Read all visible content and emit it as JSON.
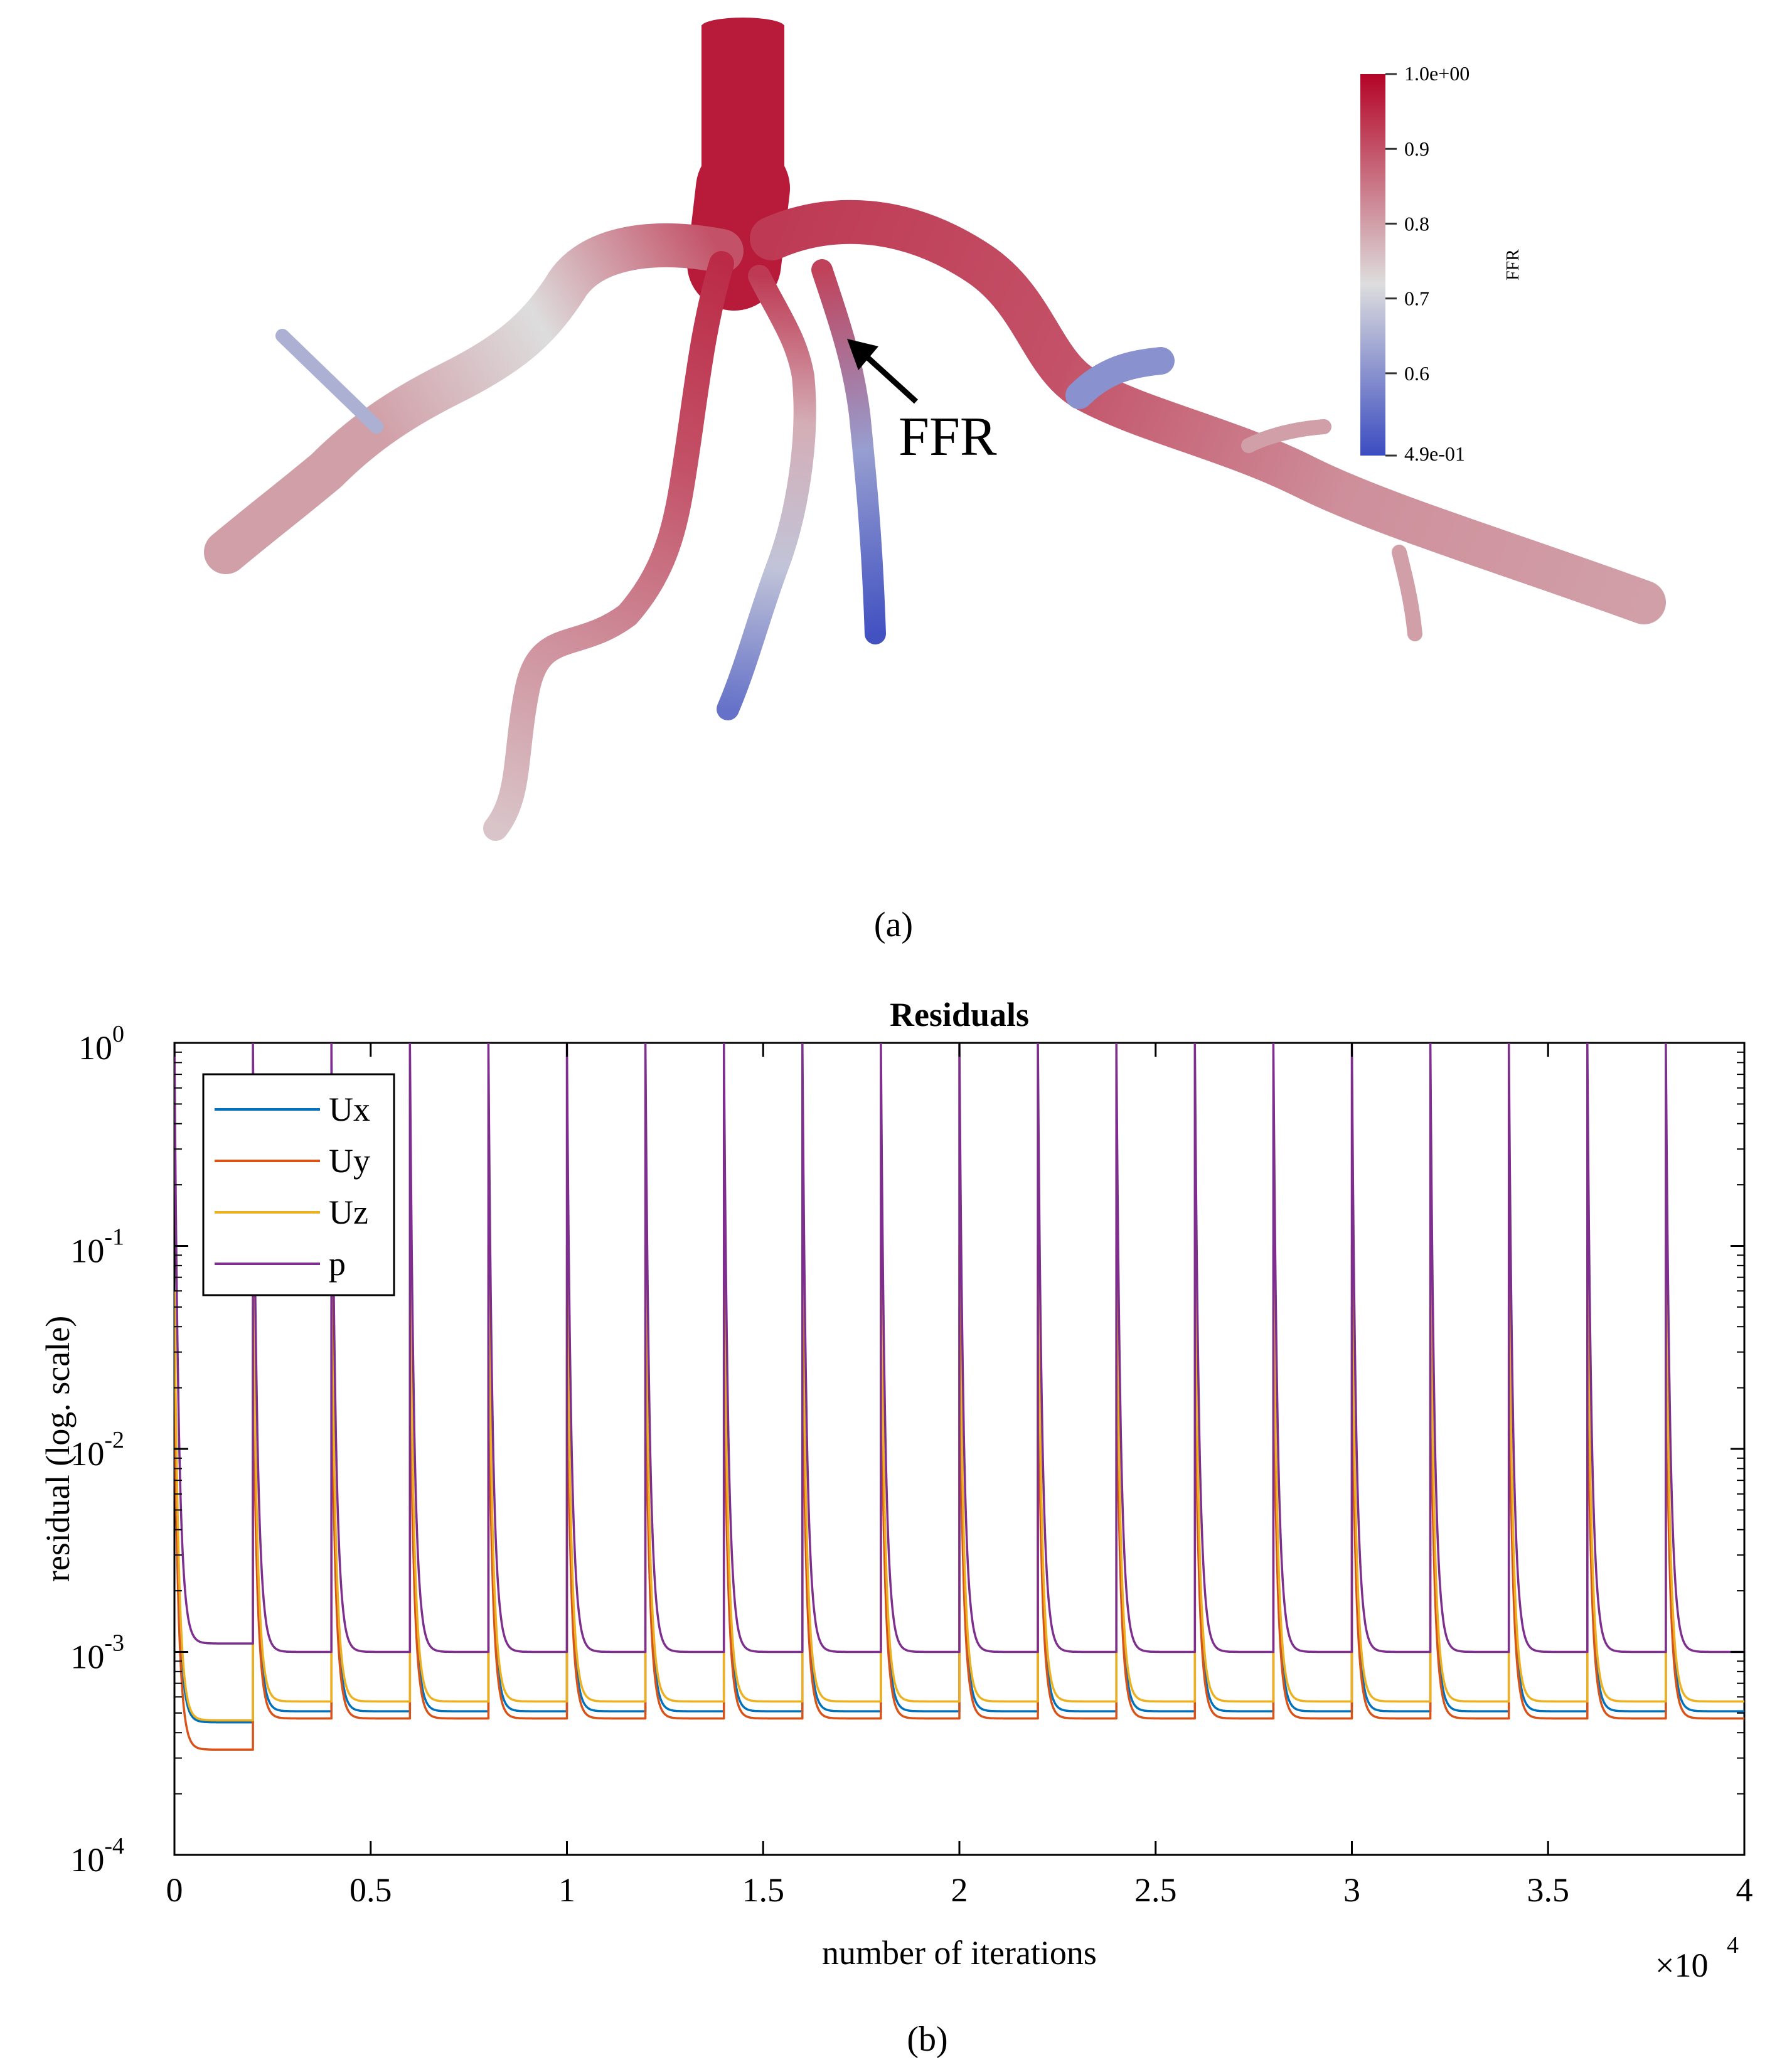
{
  "panel_a": {
    "caption": "(a)",
    "colorbar": {
      "title": "FFR",
      "max_label": "1.0e+00",
      "min_label": "4.9e-01",
      "ticks": [
        "0.9",
        "0.8",
        "0.7",
        "0.6"
      ],
      "range": [
        0.49,
        1.0
      ],
      "colors": {
        "high": "#b40426",
        "mid": "#dddddd",
        "low": "#3b4cc0"
      }
    },
    "annotation": "FFR",
    "vessel_ffr": {
      "aorta": 0.97,
      "left_branch": [
        0.9,
        0.72,
        0.8,
        0.8
      ],
      "left_spur": 0.65,
      "branch_1": [
        0.95,
        0.9,
        0.82,
        0.75
      ],
      "branch_2": [
        0.93,
        0.78,
        0.68,
        0.55
      ],
      "branch_3": [
        0.92,
        0.62,
        0.5
      ],
      "right_branch": [
        0.93,
        0.9,
        0.82,
        0.8
      ],
      "right_stub": 0.6,
      "right_spurs": 0.8
    }
  },
  "panel_b": {
    "caption": "(b)",
    "multiplier": "×10",
    "multiplier_exp": "4"
  },
  "chart_data": {
    "type": "line",
    "title": "Residuals",
    "xlabel": "number of iterations",
    "ylabel": "residual (log. scale)",
    "x_scale_factor": 10000,
    "xlim": [
      0,
      4
    ],
    "ylim": [
      0.0001,
      1
    ],
    "yscale": "log",
    "x_ticks": [
      "0",
      "0.5",
      "1",
      "1.5",
      "2",
      "2.5",
      "3",
      "3.5",
      "4"
    ],
    "y_ticks": [
      {
        "base": "10",
        "exp": "0"
      },
      {
        "base": "10",
        "exp": "-1"
      },
      {
        "base": "10",
        "exp": "-2"
      },
      {
        "base": "10",
        "exp": "-3"
      },
      {
        "base": "10",
        "exp": "-4"
      }
    ],
    "legend_position": "top-left",
    "grid": false,
    "cycle_length": 0.2,
    "cycles": 20,
    "series": [
      {
        "name": "Ux",
        "color": "#0072BD",
        "first_cycle": {
          "start": 0.02,
          "end": 0.00045
        },
        "cycle": {
          "start": 0.05,
          "end": 0.00051
        }
      },
      {
        "name": "Uy",
        "color": "#D95319",
        "first_cycle": {
          "start": 0.02,
          "end": 0.00033
        },
        "cycle": {
          "start": 0.03,
          "end": 0.00047
        }
      },
      {
        "name": "Uz",
        "color": "#EDB120",
        "first_cycle": {
          "start": 0.06,
          "end": 0.00046
        },
        "cycle": {
          "start": 0.1,
          "end": 0.00057
        }
      },
      {
        "name": "p",
        "color": "#7E2F8E",
        "first_cycle": {
          "start": 1.0,
          "end": 0.0011
        },
        "cycle": {
          "start": 1.0,
          "end": 0.001
        }
      }
    ]
  }
}
